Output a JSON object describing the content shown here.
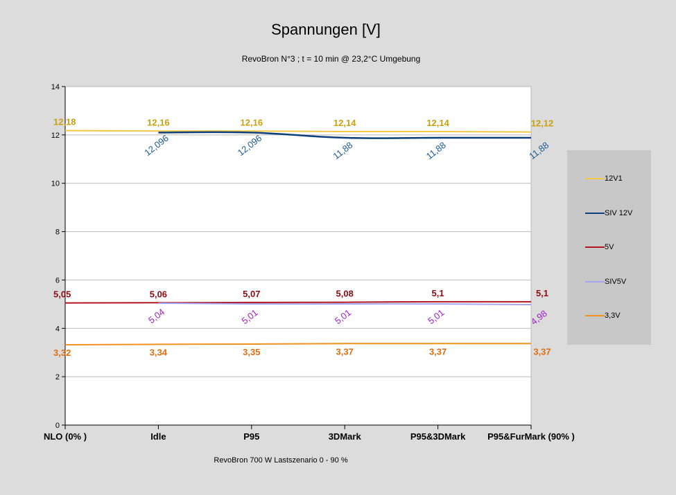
{
  "chart_data": {
    "type": "line",
    "title": "Spannungen [V]",
    "subtitle": "RevoBron N°3 ; t = 10 min @ 23,2°C Umgebung",
    "xlabel": "RevoBron 700 W Lastszenario 0 - 90 %",
    "ylabel": "",
    "ylim": [
      0,
      14
    ],
    "yticks": [
      0,
      2,
      4,
      6,
      8,
      10,
      12,
      14
    ],
    "grid": true,
    "legend_position": "right",
    "categories": [
      "NLO (0% )",
      "Idle",
      "P95",
      "3DMark",
      "P95&3DMark",
      "P95&FurMark (90% )"
    ],
    "series": [
      {
        "name": "12V1",
        "color": "#f2c744",
        "label_color": "#c8a010",
        "values": [
          12.18,
          12.16,
          12.16,
          12.14,
          12.14,
          12.12
        ],
        "labels": [
          "12,18",
          "12,16",
          "12,16",
          "12,14",
          "12,14",
          "12,12"
        ]
      },
      {
        "name": "SIV 12V",
        "color": "#0d3f7a",
        "label_color": "#1b5a96",
        "values": [
          null,
          12.096,
          12.096,
          11.88,
          11.88,
          11.88
        ],
        "labels": [
          null,
          "12,096",
          "12,096",
          "11,88",
          "11,88",
          "11,88"
        ]
      },
      {
        "name": "5V",
        "color": "#b0141e",
        "label_color": "#8c0a14",
        "values": [
          5.05,
          5.06,
          5.07,
          5.08,
          5.1,
          5.1
        ],
        "labels": [
          "5,05",
          "5,06",
          "5,07",
          "5,08",
          "5,1",
          "5,1"
        ]
      },
      {
        "name": "SIV5V",
        "color": "#a6a6f0",
        "label_color": "#a020c8",
        "values": [
          null,
          5.04,
          5.01,
          5.01,
          5.01,
          4.98
        ],
        "labels": [
          null,
          "5,04",
          "5,01",
          "5,01",
          "5,01",
          "4,98"
        ]
      },
      {
        "name": "3,3V",
        "color": "#f0901e",
        "label_color": "#e06e10",
        "values": [
          3.32,
          3.34,
          3.35,
          3.37,
          3.37,
          3.37
        ],
        "labels": [
          "3,32",
          "3,34",
          "3,35",
          "3,37",
          "3,37",
          "3,37"
        ]
      }
    ],
    "legend": [
      {
        "label": "12V1",
        "color": "#f2c744"
      },
      {
        "label": "SIV 12V",
        "color": "#0d3f7a"
      },
      {
        "label": "5V",
        "color": "#b0141e"
      },
      {
        "label": "SIV5V",
        "color": "#a6a6f0"
      },
      {
        "label": "3,3V",
        "color": "#f0901e"
      }
    ]
  }
}
